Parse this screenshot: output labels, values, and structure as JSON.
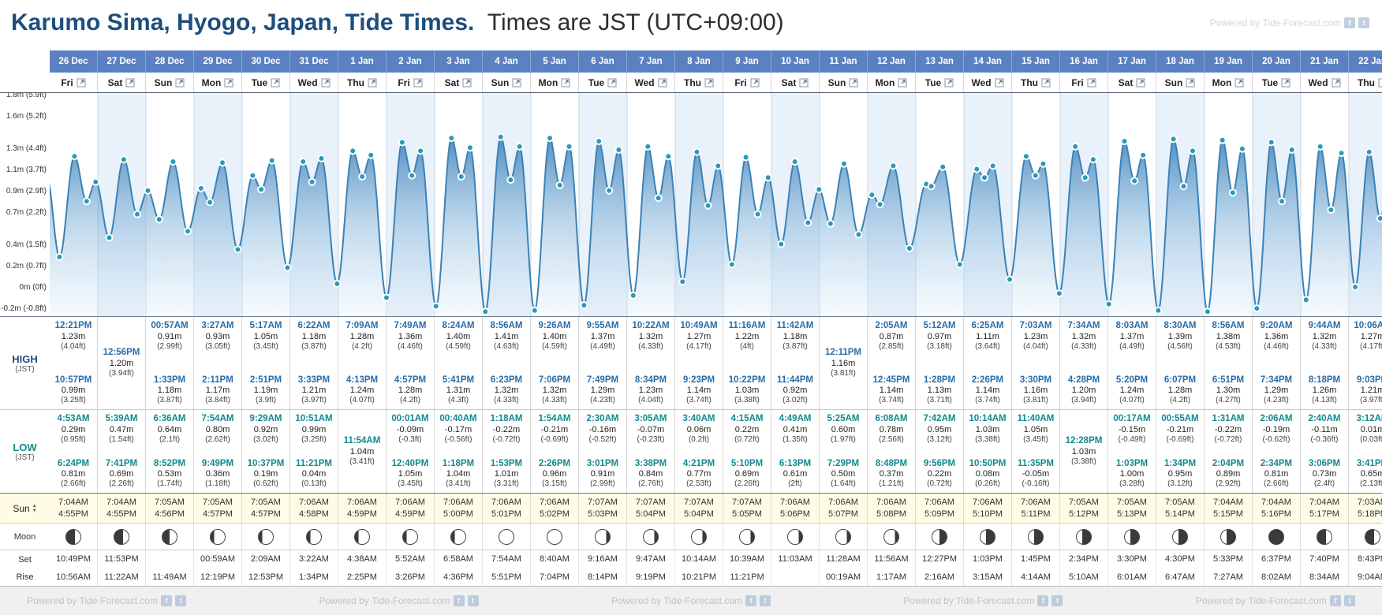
{
  "header": {
    "title_location": "Karumo Sima, Hyogo, Japan, Tide Times.",
    "title_suffix": "Times are JST (UTC+09:00)",
    "watermark": "Powered by Tide-Forecast.com"
  },
  "theme": {
    "header_blue": "#5b81c2",
    "title_blue": "#1d4e7e",
    "high_blue": "#2b6da6",
    "low_teal": "#12898e",
    "sun_bg": "#fffbe4",
    "curve": "#3c82b6",
    "marker": "#2a9bb5",
    "band": "#e9f1fa",
    "grid": "#c9d6e4"
  },
  "row_labels": {
    "high": "HIGH",
    "low": "LOW",
    "tz": "(JST)",
    "sun": "Sun",
    "moon": "Moon",
    "set": "Set",
    "rise": "Rise"
  },
  "chart": {
    "y_axis_labels": [
      {
        "v": 1.8,
        "text": "1.8m (5.9ft)"
      },
      {
        "v": 1.6,
        "text": "1.6m (5.2ft)"
      },
      {
        "v": 1.3,
        "text": "1.3m (4.4ft)"
      },
      {
        "v": 1.1,
        "text": "1.1m (3.7ft)"
      },
      {
        "v": 0.9,
        "text": "0.9m (2.9ft)"
      },
      {
        "v": 0.7,
        "text": "0.7m (2.2ft)"
      },
      {
        "v": 0.4,
        "text": "0.4m (1.5ft)"
      },
      {
        "v": 0.2,
        "text": "0.2m (0.7ft)"
      },
      {
        "v": 0,
        "text": "0m (0ft)"
      },
      {
        "v": -0.2,
        "text": "-0.2m (-0.8ft)"
      }
    ]
  },
  "days": [
    {
      "date": "26 Dec",
      "weekday": "Fri",
      "high": [
        {
          "time": "12:21PM",
          "m": "1.23m",
          "ft": "(4.04ft)"
        },
        {
          "time": "10:57PM",
          "m": "0.99m",
          "ft": "(3.25ft)"
        }
      ],
      "low": [
        {
          "time": "4:53AM",
          "m": "0.29m",
          "ft": "(0.95ft)"
        },
        {
          "time": "6:24PM",
          "m": "0.81m",
          "ft": "(2.66ft)"
        }
      ],
      "sunrise": "7:04AM",
      "sunset": "4:55PM",
      "moon_phase": "waxing-crescent",
      "moonset": "10:49PM",
      "moonrise": "10:56AM"
    },
    {
      "date": "27 Dec",
      "weekday": "Sat",
      "high": [
        {
          "time": "12:56PM",
          "m": "1.20m",
          "ft": "(3.94ft)"
        }
      ],
      "low": [
        {
          "time": "5:39AM",
          "m": "0.47m",
          "ft": "(1.54ft)"
        },
        {
          "time": "7:41PM",
          "m": "0.69m",
          "ft": "(2.26ft)"
        }
      ],
      "sunrise": "7:04AM",
      "sunset": "4:55PM",
      "moon_phase": "waxing-crescent",
      "moonset": "11:53PM",
      "moonrise": "11:22AM"
    },
    {
      "date": "28 Dec",
      "weekday": "Sun",
      "high": [
        {
          "time": "00:57AM",
          "m": "0.91m",
          "ft": "(2.99ft)"
        },
        {
          "time": "1:33PM",
          "m": "1.18m",
          "ft": "(3.87ft)"
        }
      ],
      "low": [
        {
          "time": "6:36AM",
          "m": "0.64m",
          "ft": "(2.1ft)"
        },
        {
          "time": "8:52PM",
          "m": "0.53m",
          "ft": "(1.74ft)"
        }
      ],
      "sunrise": "7:05AM",
      "sunset": "4:56PM",
      "moon_phase": "first-quarter",
      "moonset": "",
      "moonrise": "11:49AM"
    },
    {
      "date": "29 Dec",
      "weekday": "Mon",
      "high": [
        {
          "time": "3:27AM",
          "m": "0.93m",
          "ft": "(3.05ft)"
        },
        {
          "time": "2:11PM",
          "m": "1.17m",
          "ft": "(3.84ft)"
        }
      ],
      "low": [
        {
          "time": "7:54AM",
          "m": "0.80m",
          "ft": "(2.62ft)"
        },
        {
          "time": "9:49PM",
          "m": "0.36m",
          "ft": "(1.18ft)"
        }
      ],
      "sunrise": "7:05AM",
      "sunset": "4:57PM",
      "moon_phase": "waxing-gibbous",
      "moonset": "00:59AM",
      "moonrise": "12:19PM"
    },
    {
      "date": "30 Dec",
      "weekday": "Tue",
      "high": [
        {
          "time": "5:17AM",
          "m": "1.05m",
          "ft": "(3.45ft)"
        },
        {
          "time": "2:51PM",
          "m": "1.19m",
          "ft": "(3.9ft)"
        }
      ],
      "low": [
        {
          "time": "9:29AM",
          "m": "0.92m",
          "ft": "(3.02ft)"
        },
        {
          "time": "10:37PM",
          "m": "0.19m",
          "ft": "(0.62ft)"
        }
      ],
      "sunrise": "7:05AM",
      "sunset": "4:57PM",
      "moon_phase": "waxing-gibbous",
      "moonset": "2:09AM",
      "moonrise": "12:53PM"
    },
    {
      "date": "31 Dec",
      "weekday": "Wed",
      "high": [
        {
          "time": "6:22AM",
          "m": "1.18m",
          "ft": "(3.87ft)"
        },
        {
          "time": "3:33PM",
          "m": "1.21m",
          "ft": "(3.97ft)"
        }
      ],
      "low": [
        {
          "time": "10:51AM",
          "m": "0.99m",
          "ft": "(3.25ft)"
        },
        {
          "time": "11:21PM",
          "m": "0.04m",
          "ft": "(0.13ft)"
        }
      ],
      "sunrise": "7:06AM",
      "sunset": "4:58PM",
      "moon_phase": "waxing-gibbous",
      "moonset": "3:22AM",
      "moonrise": "1:34PM"
    },
    {
      "date": "1 Jan",
      "weekday": "Thu",
      "high": [
        {
          "time": "7:09AM",
          "m": "1.28m",
          "ft": "(4.2ft)"
        },
        {
          "time": "4:13PM",
          "m": "1.24m",
          "ft": "(4.07ft)"
        }
      ],
      "low": [
        {
          "time": "11:54AM",
          "m": "1.04m",
          "ft": "(3.41ft)"
        }
      ],
      "sunrise": "7:06AM",
      "sunset": "4:59PM",
      "moon_phase": "waxing-gibbous",
      "moonset": "4:38AM",
      "moonrise": "2:25PM"
    },
    {
      "date": "2 Jan",
      "weekday": "Fri",
      "high": [
        {
          "time": "7:49AM",
          "m": "1.36m",
          "ft": "(4.46ft)"
        },
        {
          "time": "4:57PM",
          "m": "1.28m",
          "ft": "(4.2ft)"
        }
      ],
      "low": [
        {
          "time": "00:01AM",
          "m": "-0.09m",
          "ft": "(-0.3ft)"
        },
        {
          "time": "12:40PM",
          "m": "1.05m",
          "ft": "(3.45ft)"
        }
      ],
      "sunrise": "7:06AM",
      "sunset": "4:59PM",
      "moon_phase": "waxing-gibbous",
      "moonset": "5:52AM",
      "moonrise": "3:26PM"
    },
    {
      "date": "3 Jan",
      "weekday": "Sat",
      "high": [
        {
          "time": "8:24AM",
          "m": "1.40m",
          "ft": "(4.59ft)"
        },
        {
          "time": "5:41PM",
          "m": "1.31m",
          "ft": "(4.3ft)"
        }
      ],
      "low": [
        {
          "time": "00:40AM",
          "m": "-0.17m",
          "ft": "(-0.56ft)"
        },
        {
          "time": "1:18PM",
          "m": "1.04m",
          "ft": "(3.41ft)"
        }
      ],
      "sunrise": "7:06AM",
      "sunset": "5:00PM",
      "moon_phase": "waxing-gibbous",
      "moonset": "6:58AM",
      "moonrise": "4:36PM"
    },
    {
      "date": "4 Jan",
      "weekday": "Sun",
      "high": [
        {
          "time": "8:56AM",
          "m": "1.41m",
          "ft": "(4.63ft)"
        },
        {
          "time": "6:23PM",
          "m": "1.32m",
          "ft": "(4.33ft)"
        }
      ],
      "low": [
        {
          "time": "1:18AM",
          "m": "-0.22m",
          "ft": "(-0.72ft)"
        },
        {
          "time": "1:53PM",
          "m": "1.01m",
          "ft": "(3.31ft)"
        }
      ],
      "sunrise": "7:06AM",
      "sunset": "5:01PM",
      "moon_phase": "full",
      "moonset": "7:54AM",
      "moonrise": "5:51PM"
    },
    {
      "date": "5 Jan",
      "weekday": "Mon",
      "high": [
        {
          "time": "9:26AM",
          "m": "1.40m",
          "ft": "(4.59ft)"
        },
        {
          "time": "7:06PM",
          "m": "1.32m",
          "ft": "(4.33ft)"
        }
      ],
      "low": [
        {
          "time": "1:54AM",
          "m": "-0.21m",
          "ft": "(-0.69ft)"
        },
        {
          "time": "2:26PM",
          "m": "0.96m",
          "ft": "(3.15ft)"
        }
      ],
      "sunrise": "7:06AM",
      "sunset": "5:02PM",
      "moon_phase": "full",
      "moonset": "8:40AM",
      "moonrise": "7:04PM"
    },
    {
      "date": "6 Jan",
      "weekday": "Tue",
      "high": [
        {
          "time": "9:55AM",
          "m": "1.37m",
          "ft": "(4.49ft)"
        },
        {
          "time": "7:49PM",
          "m": "1.29m",
          "ft": "(4.23ft)"
        }
      ],
      "low": [
        {
          "time": "2:30AM",
          "m": "-0.16m",
          "ft": "(-0.52ft)"
        },
        {
          "time": "3:01PM",
          "m": "0.91m",
          "ft": "(2.99ft)"
        }
      ],
      "sunrise": "7:07AM",
      "sunset": "5:03PM",
      "moon_phase": "waning-gibbous",
      "moonset": "9:16AM",
      "moonrise": "8:14PM"
    },
    {
      "date": "7 Jan",
      "weekday": "Wed",
      "high": [
        {
          "time": "10:22AM",
          "m": "1.32m",
          "ft": "(4.33ft)"
        },
        {
          "time": "8:34PM",
          "m": "1.23m",
          "ft": "(4.04ft)"
        }
      ],
      "low": [
        {
          "time": "3:05AM",
          "m": "-0.07m",
          "ft": "(-0.23ft)"
        },
        {
          "time": "3:38PM",
          "m": "0.84m",
          "ft": "(2.76ft)"
        }
      ],
      "sunrise": "7:07AM",
      "sunset": "5:04PM",
      "moon_phase": "waning-gibbous",
      "moonset": "9:47AM",
      "moonrise": "9:19PM"
    },
    {
      "date": "8 Jan",
      "weekday": "Thu",
      "high": [
        {
          "time": "10:49AM",
          "m": "1.27m",
          "ft": "(4.17ft)"
        },
        {
          "time": "9:23PM",
          "m": "1.14m",
          "ft": "(3.74ft)"
        }
      ],
      "low": [
        {
          "time": "3:40AM",
          "m": "0.06m",
          "ft": "(0.2ft)"
        },
        {
          "time": "4:21PM",
          "m": "0.77m",
          "ft": "(2.53ft)"
        }
      ],
      "sunrise": "7:07AM",
      "sunset": "5:04PM",
      "moon_phase": "waning-gibbous",
      "moonset": "10:14AM",
      "moonrise": "10:21PM"
    },
    {
      "date": "9 Jan",
      "weekday": "Fri",
      "high": [
        {
          "time": "11:16AM",
          "m": "1.22m",
          "ft": "(4ft)"
        },
        {
          "time": "10:22PM",
          "m": "1.03m",
          "ft": "(3.38ft)"
        }
      ],
      "low": [
        {
          "time": "4:15AM",
          "m": "0.22m",
          "ft": "(0.72ft)"
        },
        {
          "time": "5:10PM",
          "m": "0.69m",
          "ft": "(2.26ft)"
        }
      ],
      "sunrise": "7:07AM",
      "sunset": "5:05PM",
      "moon_phase": "waning-gibbous",
      "moonset": "10:39AM",
      "moonrise": "11:21PM"
    },
    {
      "date": "10 Jan",
      "weekday": "Sat",
      "high": [
        {
          "time": "11:42AM",
          "m": "1.18m",
          "ft": "(3.87ft)"
        },
        {
          "time": "11:44PM",
          "m": "0.92m",
          "ft": "(3.02ft)"
        }
      ],
      "low": [
        {
          "time": "4:49AM",
          "m": "0.41m",
          "ft": "(1.35ft)"
        },
        {
          "time": "6:13PM",
          "m": "0.61m",
          "ft": "(2ft)"
        }
      ],
      "sunrise": "7:06AM",
      "sunset": "5:06PM",
      "moon_phase": "waning-gibbous",
      "moonset": "11:03AM",
      "moonrise": ""
    },
    {
      "date": "11 Jan",
      "weekday": "Sun",
      "high": [
        {
          "time": "12:11PM",
          "m": "1.16m",
          "ft": "(3.81ft)"
        }
      ],
      "low": [
        {
          "time": "5:25AM",
          "m": "0.60m",
          "ft": "(1.97ft)"
        },
        {
          "time": "7:29PM",
          "m": "0.50m",
          "ft": "(1.64ft)"
        }
      ],
      "sunrise": "7:06AM",
      "sunset": "5:07PM",
      "moon_phase": "waning-gibbous",
      "moonset": "11:28AM",
      "moonrise": "00:19AM"
    },
    {
      "date": "12 Jan",
      "weekday": "Mon",
      "high": [
        {
          "time": "2:05AM",
          "m": "0.87m",
          "ft": "(2.85ft)"
        },
        {
          "time": "12:45PM",
          "m": "1.14m",
          "ft": "(3.74ft)"
        }
      ],
      "low": [
        {
          "time": "6:08AM",
          "m": "0.78m",
          "ft": "(2.56ft)"
        },
        {
          "time": "8:48PM",
          "m": "0.37m",
          "ft": "(1.21ft)"
        }
      ],
      "sunrise": "7:06AM",
      "sunset": "5:08PM",
      "moon_phase": "waning-gibbous",
      "moonset": "11:56AM",
      "moonrise": "1:17AM"
    },
    {
      "date": "13 Jan",
      "weekday": "Tue",
      "high": [
        {
          "time": "5:12AM",
          "m": "0.97m",
          "ft": "(3.18ft)"
        },
        {
          "time": "1:28PM",
          "m": "1.13m",
          "ft": "(3.71ft)"
        }
      ],
      "low": [
        {
          "time": "7:42AM",
          "m": "0.95m",
          "ft": "(3.12ft)"
        },
        {
          "time": "9:56PM",
          "m": "0.22m",
          "ft": "(0.72ft)"
        }
      ],
      "sunrise": "7:06AM",
      "sunset": "5:09PM",
      "moon_phase": "last-quarter",
      "moonset": "12:27PM",
      "moonrise": "2:16AM"
    },
    {
      "date": "14 Jan",
      "weekday": "Wed",
      "high": [
        {
          "time": "6:25AM",
          "m": "1.11m",
          "ft": "(3.64ft)"
        },
        {
          "time": "2:26PM",
          "m": "1.14m",
          "ft": "(3.74ft)"
        }
      ],
      "low": [
        {
          "time": "10:14AM",
          "m": "1.03m",
          "ft": "(3.38ft)"
        },
        {
          "time": "10:50PM",
          "m": "0.08m",
          "ft": "(0.26ft)"
        }
      ],
      "sunrise": "7:06AM",
      "sunset": "5:10PM",
      "moon_phase": "waning-crescent",
      "moonset": "1:03PM",
      "moonrise": "3:15AM"
    },
    {
      "date": "15 Jan",
      "weekday": "Thu",
      "high": [
        {
          "time": "7:03AM",
          "m": "1.23m",
          "ft": "(4.04ft)"
        },
        {
          "time": "3:30PM",
          "m": "1.16m",
          "ft": "(3.81ft)"
        }
      ],
      "low": [
        {
          "time": "11:40AM",
          "m": "1.05m",
          "ft": "(3.45ft)"
        },
        {
          "time": "11:35PM",
          "m": "-0.05m",
          "ft": "(-0.16ft)"
        }
      ],
      "sunrise": "7:06AM",
      "sunset": "5:11PM",
      "moon_phase": "waning-crescent",
      "moonset": "1:45PM",
      "moonrise": "4:14AM"
    },
    {
      "date": "16 Jan",
      "weekday": "Fri",
      "high": [
        {
          "time": "7:34AM",
          "m": "1.32m",
          "ft": "(4.33ft)"
        },
        {
          "time": "4:28PM",
          "m": "1.20m",
          "ft": "(3.94ft)"
        }
      ],
      "low": [
        {
          "time": "12:28PM",
          "m": "1.03m",
          "ft": "(3.38ft)"
        }
      ],
      "sunrise": "7:05AM",
      "sunset": "5:12PM",
      "moon_phase": "waning-crescent",
      "moonset": "2:34PM",
      "moonrise": "5:10AM"
    },
    {
      "date": "17 Jan",
      "weekday": "Sat",
      "high": [
        {
          "time": "8:03AM",
          "m": "1.37m",
          "ft": "(4.49ft)"
        },
        {
          "time": "5:20PM",
          "m": "1.24m",
          "ft": "(4.07ft)"
        }
      ],
      "low": [
        {
          "time": "00:17AM",
          "m": "-0.15m",
          "ft": "(-0.49ft)"
        },
        {
          "time": "1:03PM",
          "m": "1.00m",
          "ft": "(3.28ft)"
        }
      ],
      "sunrise": "7:05AM",
      "sunset": "5:13PM",
      "moon_phase": "waning-crescent",
      "moonset": "3:30PM",
      "moonrise": "6:01AM"
    },
    {
      "date": "18 Jan",
      "weekday": "Sun",
      "high": [
        {
          "time": "8:30AM",
          "m": "1.39m",
          "ft": "(4.56ft)"
        },
        {
          "time": "6:07PM",
          "m": "1.28m",
          "ft": "(4.2ft)"
        }
      ],
      "low": [
        {
          "time": "00:55AM",
          "m": "-0.21m",
          "ft": "(-0.69ft)"
        },
        {
          "time": "1:34PM",
          "m": "0.95m",
          "ft": "(3.12ft)"
        }
      ],
      "sunrise": "7:05AM",
      "sunset": "5:14PM",
      "moon_phase": "waning-crescent",
      "moonset": "4:30PM",
      "moonrise": "6:47AM"
    },
    {
      "date": "19 Jan",
      "weekday": "Mon",
      "high": [
        {
          "time": "8:56AM",
          "m": "1.38m",
          "ft": "(4.53ft)"
        },
        {
          "time": "6:51PM",
          "m": "1.30m",
          "ft": "(4.27ft)"
        }
      ],
      "low": [
        {
          "time": "1:31AM",
          "m": "-0.22m",
          "ft": "(-0.72ft)"
        },
        {
          "time": "2:04PM",
          "m": "0.89m",
          "ft": "(2.92ft)"
        }
      ],
      "sunrise": "7:04AM",
      "sunset": "5:15PM",
      "moon_phase": "waning-crescent",
      "moonset": "5:33PM",
      "moonrise": "7:27AM"
    },
    {
      "date": "20 Jan",
      "weekday": "Tue",
      "high": [
        {
          "time": "9:20AM",
          "m": "1.36m",
          "ft": "(4.46ft)"
        },
        {
          "time": "7:34PM",
          "m": "1.29m",
          "ft": "(4.23ft)"
        }
      ],
      "low": [
        {
          "time": "2:06AM",
          "m": "-0.19m",
          "ft": "(-0.62ft)"
        },
        {
          "time": "2:34PM",
          "m": "0.81m",
          "ft": "(2.66ft)"
        }
      ],
      "sunrise": "7:04AM",
      "sunset": "5:16PM",
      "moon_phase": "new",
      "moonset": "6:37PM",
      "moonrise": "8:02AM"
    },
    {
      "date": "21 Jan",
      "weekday": "Wed",
      "high": [
        {
          "time": "9:44AM",
          "m": "1.32m",
          "ft": "(4.33ft)"
        },
        {
          "time": "8:18PM",
          "m": "1.26m",
          "ft": "(4.13ft)"
        }
      ],
      "low": [
        {
          "time": "2:40AM",
          "m": "-0.11m",
          "ft": "(-0.36ft)"
        },
        {
          "time": "3:06PM",
          "m": "0.73m",
          "ft": "(2.4ft)"
        }
      ],
      "sunrise": "7:04AM",
      "sunset": "5:17PM",
      "moon_phase": "waxing-crescent",
      "moonset": "7:40PM",
      "moonrise": "8:34AM"
    },
    {
      "date": "22 Jan",
      "weekday": "Thu",
      "high": [
        {
          "time": "10:06AM",
          "m": "1.27m",
          "ft": "(4.17ft)"
        },
        {
          "time": "9:03PM",
          "m": "1.21m",
          "ft": "(3.97ft)"
        }
      ],
      "low": [
        {
          "time": "3:12AM",
          "m": "0.01m",
          "ft": "(0.03ft)"
        },
        {
          "time": "3:41PM",
          "m": "0.65m",
          "ft": "(2.13ft)"
        }
      ],
      "sunrise": "7:03AM",
      "sunset": "5:18PM",
      "moon_phase": "waxing-crescent",
      "moonset": "8:43PM",
      "moonrise": "9:04AM"
    }
  ]
}
